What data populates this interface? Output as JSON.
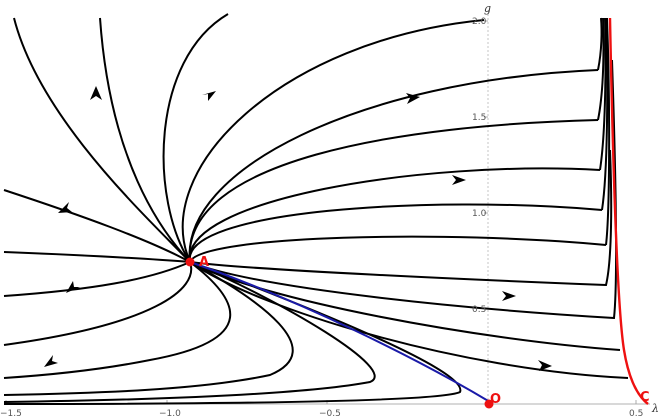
{
  "colors": {
    "background": "#ffffff",
    "flow": "#000000",
    "separatrix_red": "#ee1111",
    "separatrix_blue": "#1a1aa8",
    "points": "#ee1111",
    "axis": "#999999"
  },
  "axes": {
    "x_name": "λ",
    "y_name": "g",
    "x_ticks": [
      {
        "value": -1.5,
        "label": "−1.5"
      },
      {
        "value": -1.0,
        "label": "−1.0"
      },
      {
        "value": -0.5,
        "label": "−0.5"
      },
      {
        "value": 0.5,
        "label": "0.5"
      }
    ],
    "y_ticks": [
      {
        "value": 0.5,
        "label": "0.5"
      },
      {
        "value": 1.0,
        "label": "1.0"
      },
      {
        "value": 1.5,
        "label": "1.5"
      },
      {
        "value": 2.0,
        "label": "2.0"
      }
    ],
    "xlim": [
      -1.5,
      0.5
    ],
    "ylim": [
      0.0,
      2.0
    ],
    "grid": false
  },
  "fixed_points": [
    {
      "label": "A",
      "lambda": -0.93,
      "g": 0.745
    },
    {
      "label": "O",
      "lambda": 0.0,
      "g": 0.0
    },
    {
      "label": "C",
      "lambda": 0.5,
      "g": 0.0
    }
  ]
}
